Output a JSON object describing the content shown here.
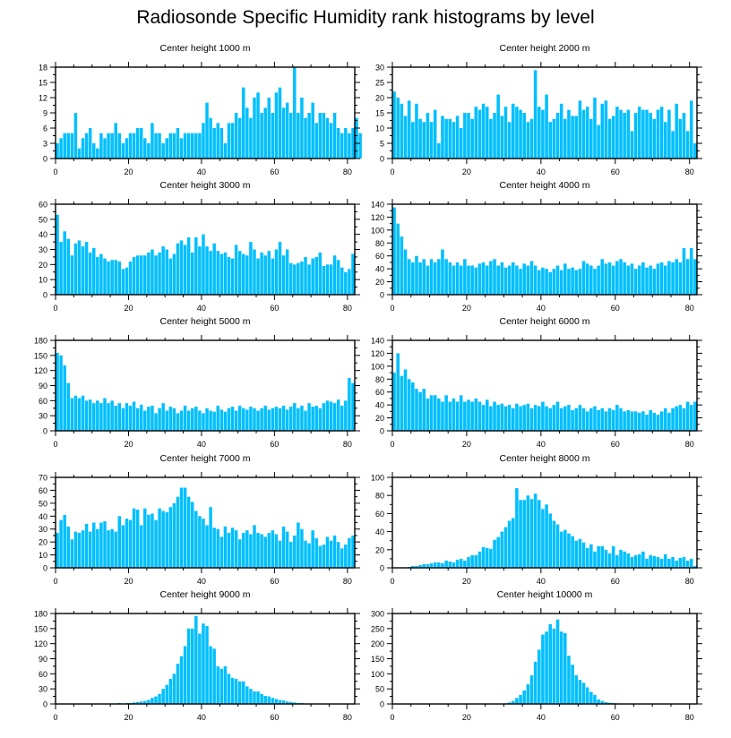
{
  "title": "Radiosonde Specific Humidity rank histograms by level",
  "colors": {
    "bar": "#00BFFF",
    "bar_edge": "#ffffff",
    "axis": "#000000"
  },
  "chart_data": [
    {
      "type": "bar",
      "title": "Center height 1000 m",
      "xlim": [
        0,
        82
      ],
      "ylim": [
        0,
        18
      ],
      "xticks": [
        0,
        20,
        40,
        60,
        80
      ],
      "yticks": [
        0,
        3,
        6,
        9,
        12,
        15,
        18
      ],
      "xlabel": "",
      "ylabel": "",
      "values": [
        3,
        4,
        5,
        5,
        5,
        9,
        2,
        4,
        5,
        6,
        3,
        2,
        5,
        4,
        5,
        5,
        7,
        5,
        3,
        4,
        5,
        5,
        6,
        6,
        4,
        3,
        7,
        5,
        5,
        3,
        4,
        5,
        5,
        6,
        4,
        5,
        5,
        5,
        5,
        5,
        7,
        11,
        8,
        6,
        7,
        6,
        3,
        7,
        7,
        9,
        8,
        14,
        10,
        8,
        12,
        13,
        9,
        10,
        12,
        9,
        13,
        14,
        10,
        11,
        9,
        18,
        9,
        12,
        8,
        9,
        11,
        7,
        9,
        9,
        8,
        7,
        9,
        6,
        5,
        6,
        5,
        6,
        8,
        5
      ]
    },
    {
      "type": "bar",
      "title": "Center height 2000 m",
      "xlim": [
        0,
        82
      ],
      "ylim": [
        0,
        30
      ],
      "xticks": [
        0,
        20,
        40,
        60,
        80
      ],
      "yticks": [
        0,
        5,
        10,
        15,
        20,
        25,
        30
      ],
      "xlabel": "",
      "ylabel": "",
      "values": [
        22,
        20,
        18,
        14,
        19,
        12,
        18,
        13,
        12,
        15,
        12,
        16,
        5,
        14,
        13,
        13,
        12,
        14,
        10,
        15,
        15,
        13,
        17,
        16,
        18,
        17,
        13,
        15,
        21,
        14,
        17,
        12,
        18,
        17,
        16,
        15,
        12,
        13,
        29,
        17,
        16,
        21,
        12,
        13,
        15,
        18,
        13,
        16,
        14,
        14,
        19,
        16,
        17,
        13,
        20,
        11,
        18,
        19,
        13,
        14,
        17,
        16,
        15,
        16,
        9,
        15,
        17,
        16,
        16,
        15,
        13,
        16,
        17,
        12,
        16,
        9,
        18,
        13,
        15,
        9,
        19,
        5
      ]
    },
    {
      "type": "bar",
      "title": "Center height 3000 m",
      "xlim": [
        0,
        82
      ],
      "ylim": [
        0,
        60
      ],
      "xticks": [
        0,
        20,
        40,
        60,
        80
      ],
      "yticks": [
        0,
        10,
        20,
        30,
        40,
        50,
        60
      ],
      "xlabel": "",
      "ylabel": "",
      "values": [
        53,
        35,
        42,
        37,
        26,
        34,
        36,
        32,
        35,
        28,
        31,
        25,
        27,
        24,
        22,
        23,
        23,
        22,
        17,
        18,
        22,
        25,
        26,
        26,
        26,
        28,
        30,
        26,
        28,
        32,
        30,
        24,
        27,
        34,
        36,
        33,
        38,
        28,
        38,
        32,
        40,
        32,
        29,
        34,
        29,
        27,
        28,
        25,
        24,
        33,
        29,
        27,
        26,
        35,
        30,
        24,
        28,
        26,
        29,
        24,
        30,
        35,
        26,
        30,
        21,
        20,
        21,
        22,
        25,
        20,
        24,
        25,
        28,
        19,
        20,
        20,
        26,
        23,
        18,
        15,
        17,
        27
      ]
    },
    {
      "type": "bar",
      "title": "Center height 4000 m",
      "xlim": [
        0,
        82
      ],
      "ylim": [
        0,
        140
      ],
      "xticks": [
        0,
        20,
        40,
        60,
        80
      ],
      "yticks": [
        0,
        20,
        40,
        60,
        80,
        100,
        120,
        140
      ],
      "xlabel": "",
      "ylabel": "",
      "values": [
        135,
        110,
        90,
        70,
        55,
        50,
        60,
        50,
        55,
        45,
        55,
        50,
        55,
        70,
        55,
        50,
        45,
        50,
        45,
        55,
        45,
        45,
        42,
        48,
        50,
        45,
        52,
        55,
        45,
        50,
        42,
        45,
        50,
        45,
        40,
        48,
        45,
        52,
        45,
        38,
        42,
        40,
        35,
        40,
        45,
        38,
        48,
        40,
        42,
        38,
        40,
        52,
        48,
        45,
        40,
        45,
        55,
        48,
        50,
        45,
        52,
        55,
        50,
        45,
        48,
        40,
        45,
        50,
        42,
        45,
        40,
        48,
        50,
        45,
        52,
        50,
        55,
        50,
        72,
        55,
        72,
        55
      ]
    },
    {
      "type": "bar",
      "title": "Center height 5000 m",
      "xlim": [
        0,
        82
      ],
      "ylim": [
        0,
        180
      ],
      "xticks": [
        0,
        20,
        40,
        60,
        80
      ],
      "yticks": [
        0,
        30,
        60,
        90,
        120,
        150,
        180
      ],
      "xlabel": "",
      "ylabel": "",
      "values": [
        155,
        150,
        130,
        95,
        65,
        70,
        65,
        70,
        60,
        62,
        55,
        60,
        55,
        65,
        55,
        60,
        50,
        55,
        45,
        55,
        50,
        58,
        45,
        52,
        40,
        48,
        50,
        35,
        45,
        55,
        40,
        48,
        45,
        35,
        40,
        50,
        40,
        45,
        48,
        40,
        35,
        45,
        40,
        38,
        50,
        42,
        38,
        45,
        48,
        40,
        50,
        45,
        42,
        48,
        45,
        40,
        45,
        50,
        42,
        45,
        48,
        45,
        50,
        42,
        48,
        55,
        45,
        50,
        40,
        55,
        48,
        50,
        45,
        55,
        60,
        58,
        55,
        62,
        50,
        60,
        105,
        95
      ]
    },
    {
      "type": "bar",
      "title": "Center height 6000 m",
      "xlim": [
        0,
        82
      ],
      "ylim": [
        0,
        140
      ],
      "xticks": [
        0,
        20,
        40,
        60,
        80
      ],
      "yticks": [
        0,
        20,
        40,
        60,
        80,
        100,
        120,
        140
      ],
      "xlabel": "",
      "ylabel": "",
      "values": [
        90,
        120,
        85,
        95,
        80,
        75,
        65,
        60,
        65,
        50,
        55,
        55,
        50,
        45,
        55,
        45,
        50,
        45,
        55,
        45,
        48,
        45,
        50,
        45,
        40,
        48,
        38,
        45,
        40,
        42,
        38,
        40,
        35,
        42,
        38,
        40,
        42,
        35,
        40,
        38,
        45,
        38,
        35,
        40,
        45,
        35,
        38,
        40,
        32,
        35,
        40,
        35,
        30,
        35,
        38,
        32,
        35,
        30,
        35,
        32,
        40,
        35,
        30,
        32,
        30,
        30,
        28,
        30,
        25,
        32,
        28,
        25,
        30,
        35,
        28,
        35,
        38,
        40,
        35,
        45,
        40,
        45
      ]
    },
    {
      "type": "bar",
      "title": "Center height 7000 m",
      "xlim": [
        0,
        82
      ],
      "ylim": [
        0,
        70
      ],
      "xticks": [
        0,
        20,
        40,
        60,
        80
      ],
      "yticks": [
        0,
        10,
        20,
        30,
        40,
        50,
        60,
        70
      ],
      "xlabel": "",
      "ylabel": "",
      "values": [
        27,
        37,
        41,
        32,
        22,
        28,
        27,
        29,
        34,
        28,
        35,
        30,
        35,
        36,
        29,
        30,
        28,
        40,
        33,
        38,
        37,
        46,
        45,
        33,
        46,
        41,
        42,
        37,
        46,
        44,
        43,
        47,
        50,
        55,
        62,
        62,
        55,
        51,
        44,
        40,
        38,
        33,
        47,
        31,
        30,
        24,
        32,
        27,
        31,
        29,
        22,
        27,
        29,
        26,
        33,
        27,
        26,
        24,
        27,
        29,
        26,
        21,
        32,
        28,
        20,
        25,
        35,
        30,
        21,
        19,
        29,
        23,
        17,
        18,
        24,
        21,
        25,
        20,
        15,
        18,
        23,
        25
      ]
    },
    {
      "type": "bar",
      "title": "Center height 8000 m",
      "xlim": [
        0,
        82
      ],
      "ylim": [
        0,
        100
      ],
      "xticks": [
        0,
        20,
        40,
        60,
        80
      ],
      "yticks": [
        0,
        20,
        40,
        60,
        80,
        100
      ],
      "xlabel": "",
      "ylabel": "",
      "values": [
        0,
        0,
        0,
        0,
        1,
        2,
        2,
        3,
        4,
        4,
        5,
        6,
        6,
        5,
        8,
        7,
        6,
        9,
        10,
        8,
        12,
        14,
        14,
        18,
        23,
        22,
        21,
        31,
        34,
        40,
        45,
        52,
        55,
        88,
        75,
        75,
        80,
        76,
        82,
        75,
        65,
        70,
        60,
        52,
        48,
        40,
        42,
        38,
        35,
        30,
        32,
        28,
        22,
        26,
        18,
        24,
        24,
        20,
        16,
        24,
        14,
        20,
        18,
        16,
        12,
        14,
        15,
        18,
        10,
        14,
        13,
        12,
        10,
        15,
        10,
        12,
        8,
        11,
        12,
        8,
        10,
        2
      ]
    },
    {
      "type": "bar",
      "title": "Center height 9000 m",
      "xlim": [
        0,
        82
      ],
      "ylim": [
        0,
        180
      ],
      "xticks": [
        0,
        20,
        40,
        60,
        80
      ],
      "yticks": [
        0,
        30,
        60,
        90,
        120,
        150,
        180
      ],
      "xlabel": "",
      "ylabel": "",
      "values": [
        0,
        0,
        0,
        0,
        0,
        0,
        0,
        0,
        0,
        0,
        0,
        0,
        1,
        1,
        1,
        1,
        1,
        2,
        1,
        2,
        2,
        3,
        4,
        5,
        6,
        8,
        12,
        15,
        20,
        30,
        38,
        50,
        60,
        80,
        95,
        115,
        150,
        150,
        175,
        140,
        160,
        155,
        115,
        110,
        75,
        70,
        75,
        60,
        52,
        50,
        45,
        45,
        35,
        30,
        25,
        25,
        20,
        16,
        15,
        12,
        10,
        8,
        7,
        5,
        4,
        3,
        2,
        2,
        1,
        1,
        1,
        1,
        0,
        0,
        0,
        0,
        0,
        0,
        0,
        0,
        0,
        0
      ]
    },
    {
      "type": "bar",
      "title": "Center height 10000 m",
      "xlim": [
        0,
        82
      ],
      "ylim": [
        0,
        300
      ],
      "xticks": [
        0,
        20,
        40,
        60,
        80
      ],
      "yticks": [
        0,
        50,
        100,
        150,
        200,
        250,
        300
      ],
      "xlabel": "",
      "ylabel": "",
      "values": [
        0,
        0,
        0,
        0,
        0,
        0,
        0,
        0,
        0,
        0,
        0,
        0,
        0,
        0,
        0,
        0,
        0,
        0,
        0,
        0,
        0,
        0,
        0,
        0,
        0,
        0,
        0,
        0,
        1,
        1,
        2,
        5,
        10,
        20,
        30,
        45,
        65,
        95,
        140,
        180,
        230,
        240,
        265,
        250,
        280,
        240,
        235,
        160,
        130,
        95,
        80,
        70,
        55,
        40,
        30,
        15,
        10,
        6,
        4,
        3,
        2,
        1,
        1,
        0,
        0,
        0,
        0,
        0,
        0,
        0,
        0,
        0,
        0,
        0,
        0,
        0,
        0,
        0,
        0,
        0,
        0,
        0
      ]
    }
  ]
}
